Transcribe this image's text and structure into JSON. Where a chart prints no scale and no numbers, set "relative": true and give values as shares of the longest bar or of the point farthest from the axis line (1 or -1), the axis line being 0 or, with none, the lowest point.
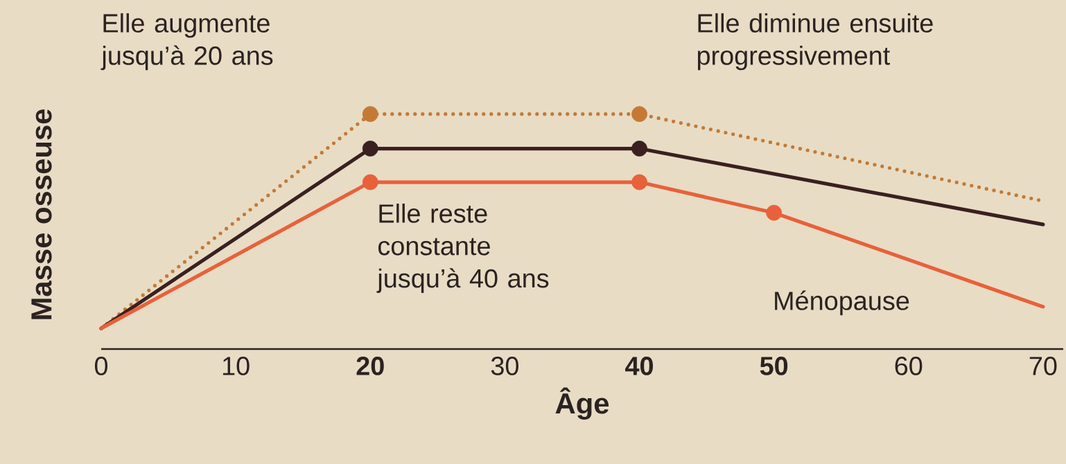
{
  "chart_data": {
    "type": "line",
    "relative": true,
    "xlabel": "Âge",
    "ylabel": "Masse osseuse",
    "xlim": [
      0,
      71.5
    ],
    "xticks": [
      0,
      10,
      {
        "value": 20,
        "label": "**20**"
      },
      30,
      {
        "value": 40,
        "label": "**40**"
      },
      {
        "value": 50,
        "label": "**50**"
      },
      60,
      70
    ],
    "marker": "none",
    "series": [
      {
        "color": "#c47a35",
        "line_style": "dotted",
        "x": [
          0,
          20,
          40,
          70
        ],
        "values": [
          0.088,
          1,
          1,
          0.63
        ]
      },
      {
        "color": "#3a2020",
        "line_style": "solid",
        "x": [
          0,
          20,
          40,
          70
        ],
        "values": [
          0.088,
          0.853,
          0.853,
          0.53
        ]
      },
      {
        "color": "#e8613a",
        "line_style": "solid",
        "x": [
          0,
          20,
          40,
          50,
          70
        ],
        "values": [
          0.088,
          0.71,
          0.71,
          0.58,
          0.18
        ]
      },
      {
        "type": "scatter",
        "marker": "circle",
        "color": "#c47a35",
        "x": [
          20,
          40
        ],
        "values": [
          1,
          1
        ]
      },
      {
        "type": "scatter",
        "marker": "circle",
        "color": "#3a2020",
        "x": [
          20,
          40
        ],
        "values": [
          0.853,
          0.853
        ]
      },
      {
        "type": "scatter",
        "marker": "circle",
        "color": "#e8613a",
        "x": [
          20,
          40,
          50
        ],
        "values": [
          0.71,
          0.71,
          0.58
        ]
      }
    ],
    "annotations": [
      "Elle augmente jusqu’à 20 ans",
      "Elle diminue ensuite progressivement",
      "Elle reste constante jusqu’à 40 ans",
      {
        "text": "Ménopause",
        "x": 50,
        "y": 0.58
      }
    ]
  }
}
